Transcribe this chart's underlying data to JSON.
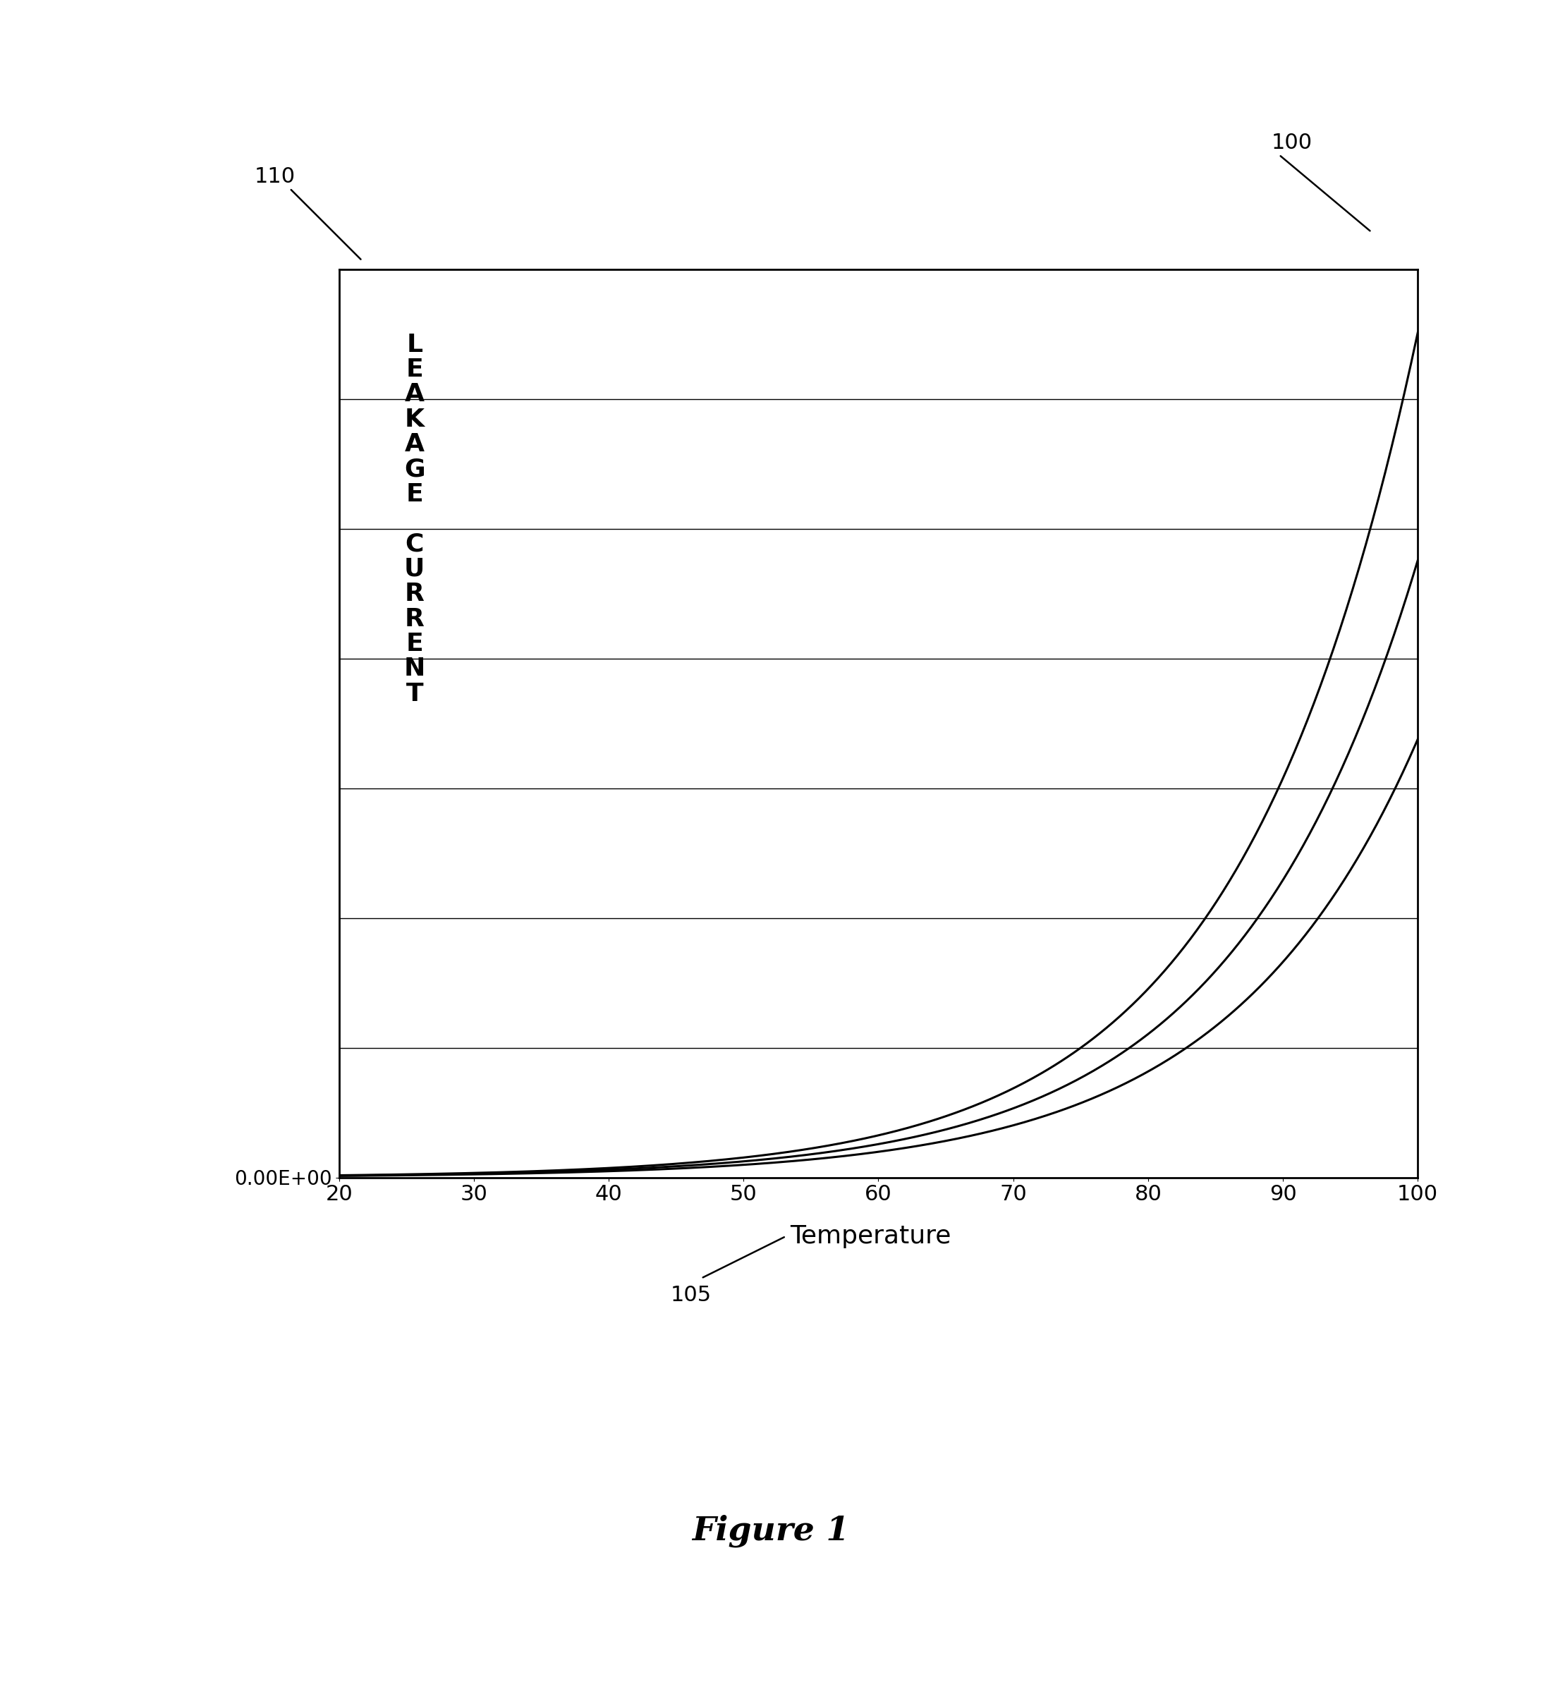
{
  "x_min": 20,
  "x_max": 100,
  "y_min": 0,
  "y_max": 1.0,
  "x_ticks": [
    20,
    30,
    40,
    50,
    60,
    70,
    80,
    90,
    100
  ],
  "y_tick_label": "0.00E+00",
  "line_color": "#000000",
  "background_color": "#ffffff",
  "ylabel_text": "L\nE\nA\nK\nA\nG\nE\n \nC\nU\nR\nR\nE\nN\nT",
  "xlabel": "Temperature",
  "figure_label": "Figure 1",
  "ann_100": "100",
  "ann_110": "110",
  "ann_105": "105",
  "n_gridlines": 7,
  "curve_params": [
    {
      "a": 0.07,
      "b": 0.075,
      "shift": 0
    },
    {
      "a": 0.06,
      "b": 0.073,
      "shift": 0
    },
    {
      "a": 0.05,
      "b": 0.071,
      "shift": 0
    }
  ]
}
